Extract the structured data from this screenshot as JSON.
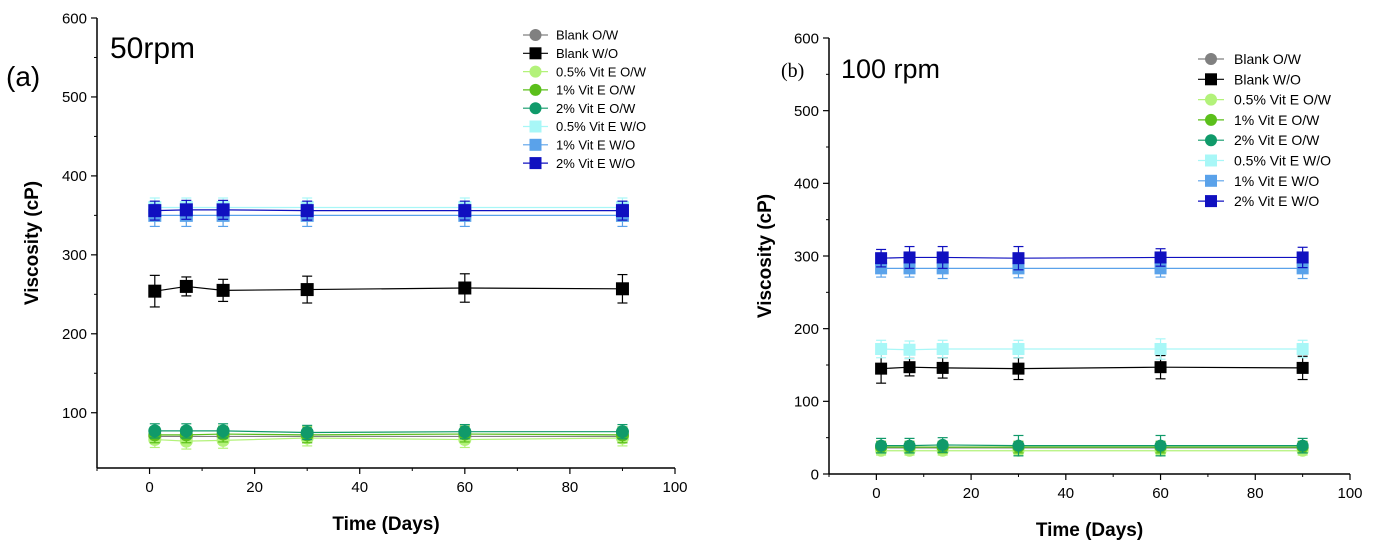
{
  "chart_data": [
    {
      "type": "scatter",
      "panel_label": "(a)",
      "inset_title": "50rpm",
      "xlabel": "Time (Days)",
      "ylabel": "Viscosity (cP)",
      "xlim": [
        -10,
        100
      ],
      "ylim": [
        30,
        600
      ],
      "x_ticks": [
        0,
        20,
        40,
        60,
        80,
        100
      ],
      "y_ticks": [
        100,
        200,
        300,
        400,
        500,
        600
      ],
      "grid": false,
      "legend_position": "top-right",
      "x": [
        1,
        7,
        14,
        30,
        60,
        90
      ],
      "series": [
        {
          "name": "Blank O/W",
          "color": "#808080",
          "marker": "circle",
          "values": [
            70,
            70,
            70,
            70,
            70,
            70
          ],
          "errors": [
            8,
            8,
            8,
            8,
            8,
            8
          ]
        },
        {
          "name": "Blank W/O",
          "color": "#000000",
          "marker": "square",
          "values": [
            254,
            260,
            255,
            256,
            258,
            257
          ],
          "errors": [
            20,
            12,
            14,
            17,
            18,
            18
          ]
        },
        {
          "name": "0.5% Vit E O/W",
          "color": "#b3f27a",
          "marker": "circle",
          "values": [
            66,
            64,
            65,
            68,
            66,
            68
          ],
          "errors": [
            10,
            10,
            10,
            10,
            10,
            10
          ]
        },
        {
          "name": "1% Vit E O/W",
          "color": "#5bbf1a",
          "marker": "circle",
          "values": [
            72,
            72,
            73,
            72,
            73,
            72
          ],
          "errors": [
            10,
            10,
            10,
            10,
            10,
            10
          ]
        },
        {
          "name": "2% Vit E O/W",
          "color": "#109a6a",
          "marker": "circle",
          "values": [
            77,
            77,
            77,
            75,
            76,
            76
          ],
          "errors": [
            9,
            9,
            9,
            9,
            9,
            9
          ]
        },
        {
          "name": "0.5% Vit E W/O",
          "color": "#a8f7f7",
          "marker": "square",
          "values": [
            360,
            360,
            360,
            360,
            360,
            360
          ],
          "errors": [
            12,
            12,
            12,
            12,
            12,
            12
          ]
        },
        {
          "name": "1% Vit E W/O",
          "color": "#5aa2ea",
          "marker": "square",
          "values": [
            350,
            350,
            350,
            350,
            350,
            350
          ],
          "errors": [
            14,
            14,
            14,
            14,
            14,
            14
          ]
        },
        {
          "name": "2% Vit E W/O",
          "color": "#1010c0",
          "marker": "square",
          "values": [
            356,
            357,
            357,
            356,
            356,
            356
          ],
          "errors": [
            12,
            12,
            12,
            12,
            12,
            12
          ]
        }
      ]
    },
    {
      "type": "scatter",
      "panel_label": "(b)",
      "inset_title": "100 rpm",
      "xlabel": "Time (Days)",
      "ylabel": "Viscosity (cP)",
      "xlim": [
        -10,
        100
      ],
      "ylim": [
        0,
        600
      ],
      "x_ticks": [
        0,
        20,
        40,
        60,
        80,
        100
      ],
      "y_ticks": [
        0,
        100,
        200,
        300,
        400,
        500,
        600
      ],
      "grid": false,
      "legend_position": "top-right",
      "x": [
        1,
        7,
        14,
        30,
        60,
        90
      ],
      "series": [
        {
          "name": "Blank O/W",
          "color": "#808080",
          "marker": "circle",
          "values": [
            36,
            36,
            36,
            36,
            36,
            36
          ],
          "errors": [
            6,
            6,
            6,
            6,
            6,
            6
          ]
        },
        {
          "name": "Blank W/O",
          "color": "#000000",
          "marker": "square",
          "values": [
            145,
            147,
            146,
            145,
            147,
            146
          ],
          "errors": [
            20,
            12,
            14,
            15,
            16,
            16
          ]
        },
        {
          "name": "0.5% Vit E O/W",
          "color": "#b3f27a",
          "marker": "circle",
          "values": [
            32,
            32,
            32,
            32,
            32,
            32
          ],
          "errors": [
            6,
            6,
            6,
            6,
            6,
            6
          ]
        },
        {
          "name": "1% Vit E O/W",
          "color": "#5bbf1a",
          "marker": "circle",
          "values": [
            37,
            37,
            37,
            37,
            37,
            37
          ],
          "errors": [
            8,
            8,
            8,
            8,
            8,
            8
          ]
        },
        {
          "name": "2% Vit E O/W",
          "color": "#109a6a",
          "marker": "circle",
          "values": [
            39,
            39,
            40,
            39,
            39,
            39
          ],
          "errors": [
            10,
            10,
            10,
            14,
            14,
            10
          ]
        },
        {
          "name": "0.5% Vit E W/O",
          "color": "#a8f7f7",
          "marker": "square",
          "values": [
            172,
            171,
            172,
            172,
            172,
            172
          ],
          "errors": [
            12,
            12,
            12,
            12,
            14,
            12
          ]
        },
        {
          "name": "1% Vit E W/O",
          "color": "#5aa2ea",
          "marker": "square",
          "values": [
            283,
            283,
            283,
            283,
            283,
            283
          ],
          "errors": [
            12,
            12,
            14,
            13,
            12,
            14
          ]
        },
        {
          "name": "2% Vit E W/O",
          "color": "#1010c0",
          "marker": "square",
          "values": [
            297,
            298,
            298,
            297,
            298,
            298
          ],
          "errors": [
            12,
            15,
            15,
            16,
            12,
            14
          ]
        }
      ]
    }
  ]
}
